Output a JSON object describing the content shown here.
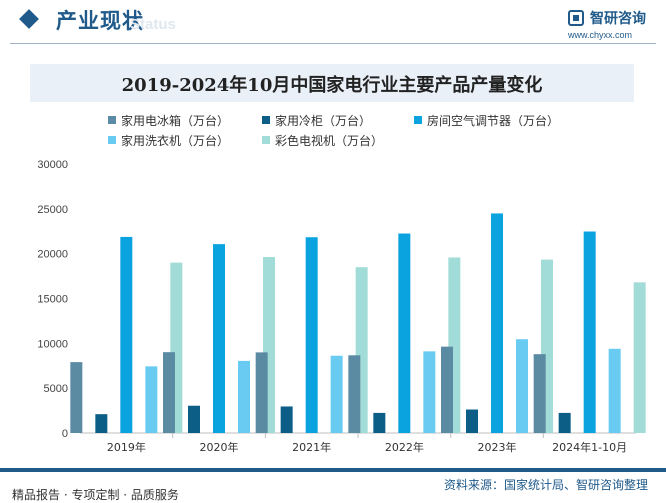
{
  "header": {
    "section_title": "产业现状",
    "section_sub": "Status",
    "logo_name": "智研咨询",
    "logo_url": "www.chyxx.com"
  },
  "footer": {
    "source": "资料来源：国家统计局、智研咨询整理",
    "slogan": "精品报告 · 专项定制 · 品质服务"
  },
  "colors": {
    "brand": "#1f5a8a",
    "series": [
      "#5b8aa3",
      "#0d5e86",
      "#0ba3df",
      "#69cbf2",
      "#a2dcd8"
    ]
  },
  "chart_data": {
    "type": "bar",
    "title": "2019-2024年10月中国家电行业主要产品产量变化",
    "categories": [
      "2019年",
      "2020年",
      "2021年",
      "2022年",
      "2023年",
      "2024年1-10月"
    ],
    "series": [
      {
        "name": "家用电冰箱（万台）",
        "values": [
          7904,
          9015,
          8992,
          8664,
          9632,
          8792
        ]
      },
      {
        "name": "家用冷柜（万台）",
        "values": [
          2100,
          3040,
          2960,
          2240,
          2620,
          2240
        ]
      },
      {
        "name": "房间空气调节器（万台）",
        "values": [
          21866,
          21064,
          21836,
          22247,
          24487,
          22470
        ]
      },
      {
        "name": "家用洗衣机（万台）",
        "values": [
          7433,
          8042,
          8619,
          9106,
          10458,
          9391
        ]
      },
      {
        "name": "彩色电视机（万台）",
        "values": [
          18999,
          19626,
          18497,
          19578,
          19339,
          16800
        ]
      }
    ],
    "yticks": [
      0,
      5000,
      10000,
      15000,
      20000,
      25000,
      30000
    ],
    "ylim": [
      0,
      30000
    ],
    "legend_position": "top",
    "grid": false
  }
}
